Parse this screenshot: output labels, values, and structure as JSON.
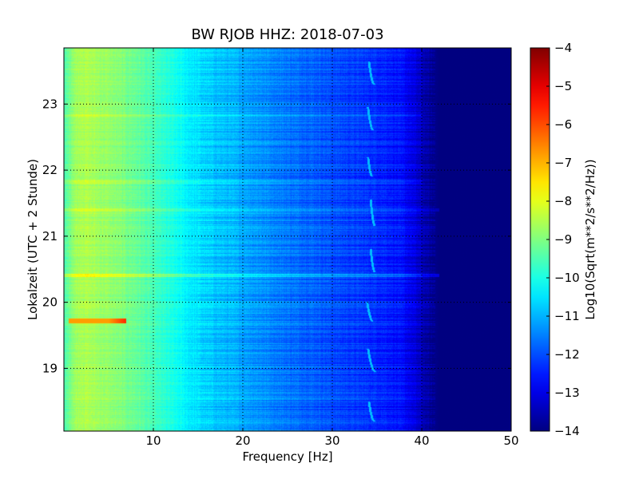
{
  "chart_data": {
    "type": "heatmap",
    "title": "BW RJOB HHZ: 2018-07-03",
    "xlabel": "Frequency [Hz]",
    "ylabel": "Lokalzeit (UTC + 2 Stunde)",
    "xlim": [
      0,
      50
    ],
    "ylim": [
      23.85,
      18.05
    ],
    "y_inverted": true,
    "x_ticks": [
      10,
      20,
      30,
      40,
      50
    ],
    "y_ticks": [
      19,
      20,
      21,
      22,
      23
    ],
    "grid": true,
    "colormap": "jet",
    "colorbar": {
      "label": "Log10(Sqrt(m**2/s**2/Hz))",
      "range": [
        -14,
        -4
      ],
      "ticks": [
        -4,
        -5,
        -6,
        -7,
        -8,
        -9,
        -10,
        -11,
        -12,
        -13,
        -14
      ]
    },
    "spectrum_profile": {
      "frequency_hz": [
        0,
        1,
        2,
        3,
        5,
        8,
        10,
        12,
        14,
        16,
        18,
        20,
        22,
        25,
        28,
        30,
        33,
        36,
        38,
        39,
        40,
        41,
        42,
        45,
        50
      ],
      "log10_amplitude": [
        -9.6,
        -8.8,
        -8.5,
        -8.6,
        -8.8,
        -9.2,
        -9.6,
        -10.0,
        -10.4,
        -10.7,
        -10.9,
        -11.1,
        -11.3,
        -11.6,
        -11.8,
        -12.0,
        -12.2,
        -12.4,
        -12.7,
        -13.0,
        -13.4,
        -13.8,
        -14.0,
        -14.0,
        -14.0
      ]
    },
    "features": [
      {
        "type": "narrowband_line",
        "hour": 19.72,
        "freq_range_hz": [
          0.5,
          7
        ],
        "log10_amplitude": -6.8
      },
      {
        "type": "broadband_line",
        "hour": 20.41,
        "freq_range_hz": [
          0,
          42
        ],
        "log10_amplitude_offset": 0.9
      },
      {
        "type": "broadband_line",
        "hour": 21.4,
        "freq_range_hz": [
          0,
          42
        ],
        "log10_amplitude_offset": 0.5
      },
      {
        "type": "broadband_line",
        "hour": 21.82,
        "freq_range_hz": [
          0,
          40
        ],
        "log10_amplitude_offset": 0.4
      },
      {
        "type": "broadband_line",
        "hour": 22.82,
        "freq_range_hz": [
          0,
          40
        ],
        "log10_amplitude_offset": 0.35
      },
      {
        "type": "tonal_sweep",
        "hours": [
          18.2,
          18.5
        ],
        "freq_hz": [
          34.1,
          34.7
        ],
        "log10_amplitude": -10.9
      },
      {
        "type": "tonal_sweep",
        "hours": [
          18.95,
          19.3
        ],
        "freq_hz": [
          34.0,
          34.8
        ],
        "log10_amplitude": -10.9
      },
      {
        "type": "tonal_sweep",
        "hours": [
          19.7,
          20.0
        ],
        "freq_hz": [
          33.9,
          34.6
        ],
        "log10_amplitude": -10.9
      },
      {
        "type": "tonal_sweep",
        "hours": [
          20.45,
          20.8
        ],
        "freq_hz": [
          34.3,
          34.8
        ],
        "log10_amplitude": -10.9
      },
      {
        "type": "tonal_sweep",
        "hours": [
          21.15,
          21.55
        ],
        "freq_hz": [
          34.3,
          34.8
        ],
        "log10_amplitude": -10.9
      },
      {
        "type": "tonal_sweep",
        "hours": [
          21.9,
          22.2
        ],
        "freq_hz": [
          34.0,
          34.5
        ],
        "log10_amplitude": -10.9
      },
      {
        "type": "tonal_sweep",
        "hours": [
          22.6,
          22.95
        ],
        "freq_hz": [
          34.0,
          34.6
        ],
        "log10_amplitude": -10.9
      },
      {
        "type": "tonal_sweep",
        "hours": [
          23.3,
          23.65
        ],
        "freq_hz": [
          34.1,
          34.7
        ],
        "log10_amplitude": -10.9
      }
    ]
  }
}
